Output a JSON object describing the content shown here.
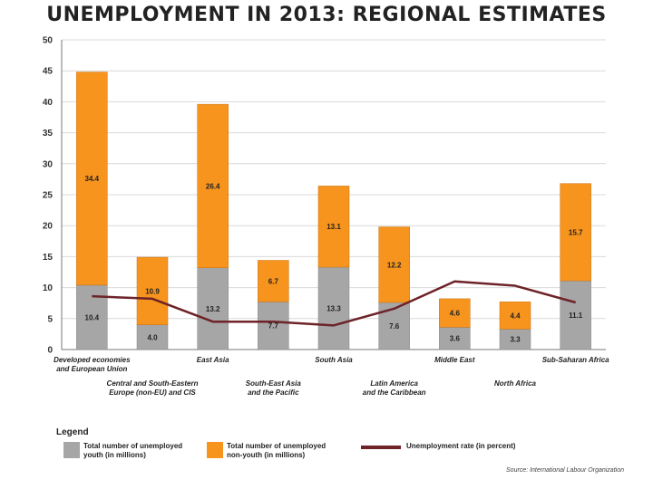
{
  "title": "UNEMPLOYMENT IN 2013: REGIONAL ESTIMATES",
  "legend_title": "Legend",
  "source": "Source: International Labour Organization",
  "colors": {
    "youth": "#a6a6a6",
    "nonyouth": "#f7941d",
    "rate": "#6d2327",
    "grid": "#d9d9d9",
    "axis": "#777777"
  },
  "chart_data": {
    "type": "bar",
    "stacked": true,
    "title": "UNEMPLOYMENT IN 2013: REGIONAL ESTIMATES",
    "ylim": [
      0,
      50
    ],
    "yticks": [
      0,
      5,
      10,
      15,
      20,
      25,
      30,
      35,
      40,
      45,
      50
    ],
    "grid": true,
    "legend_position": "bottom-left",
    "categories": [
      [
        "Developed economies",
        "and European Union"
      ],
      [
        "Central and South-Eastern",
        "Europe (non-EU) and CIS"
      ],
      [
        "East Asia"
      ],
      [
        "South-East Asia",
        "and the Pacific"
      ],
      [
        "South Asia"
      ],
      [
        "Latin America",
        "and the Caribbean"
      ],
      [
        "Middle East"
      ],
      [
        "North Africa"
      ],
      [
        "Sub-Saharan Africa"
      ]
    ],
    "series": [
      {
        "name": "Total number of unemployed youth (in millions)",
        "values": [
          10.4,
          4.0,
          13.2,
          7.7,
          13.3,
          7.6,
          3.6,
          3.3,
          11.1
        ]
      },
      {
        "name": "Total number of unemployed non-youth (in millions)",
        "values": [
          34.4,
          10.9,
          26.4,
          6.7,
          13.1,
          12.2,
          4.6,
          4.4,
          15.7
        ]
      },
      {
        "name": "Unemployment rate (in percent)",
        "type": "line",
        "values": [
          8.6,
          8.2,
          4.5,
          4.5,
          3.9,
          6.6,
          11.0,
          10.3,
          7.6
        ]
      }
    ]
  },
  "legend": {
    "youth": "Total number of unemployed youth (in millions)",
    "nonyouth": "Total number of unemployed non-youth (in millions)",
    "rate": "Unemployment rate (in percent)"
  }
}
